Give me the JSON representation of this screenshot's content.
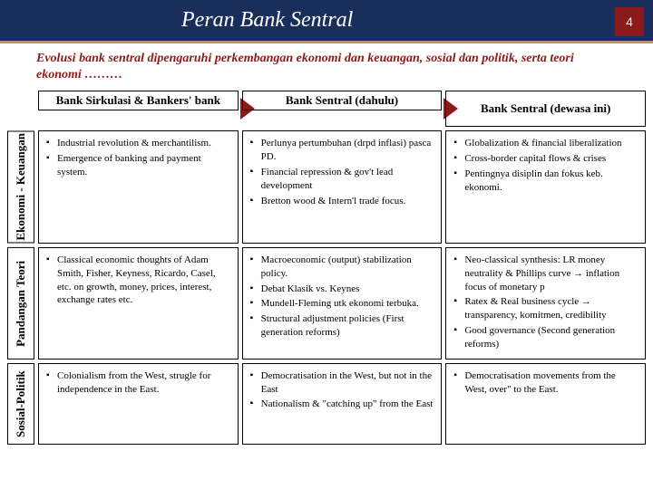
{
  "title": "Peran Bank Sentral",
  "page_number": "4",
  "subtitle": "Evolusi bank sentral dipengaruhi perkembangan ekonomi dan keuangan, sosial dan politik, serta teori ekonomi ………",
  "columns": [
    {
      "label": "Bank Sirkulasi & Bankers' bank"
    },
    {
      "label": "Bank Sentral (dahulu)"
    },
    {
      "label": "Bank Sentral (dewasa ini)"
    }
  ],
  "rows": [
    {
      "label": "Ekonomi - Keuangan"
    },
    {
      "label": "Pandangan Teori"
    },
    {
      "label": "Sosial-Politik"
    }
  ],
  "cells": {
    "r0c0": [
      "Industrial revolution & merchantilism.",
      "Emergence of banking and payment system."
    ],
    "r0c1": [
      "Perlunya pertumbuhan (drpd inflasi) pasca PD.",
      "Financial repression & gov't lead development",
      "Bretton wood & Intern'l trade focus."
    ],
    "r0c2": [
      "Globalization & financial liberalization",
      "Cross-border capital flows & crises",
      "Pentingnya disiplin dan fokus keb. ekonomi."
    ],
    "r1c0": [
      "Classical economic thoughts of Adam Smith, Fisher, Keyness, Ricardo, Casel, etc.  on growth, money, prices, interest, exchange rates etc."
    ],
    "r1c1": [
      "Macroeconomic (output) stabilization policy.",
      "Debat Klasik vs. Keynes",
      "Mundell-Fleming utk ekonomi terbuka.",
      "Structural adjustment policies (First generation reforms)"
    ],
    "r1c2": [
      "Neo-classical synthesis: LR money neutrality & Phillips curve → inflation focus of monetary p",
      "Ratex & Real business cycle → transparency, komitmen, credibility",
      "Good governance (Second generation reforms)"
    ],
    "r2c0": [
      "Colonialism from the West, strugle for independence in the East."
    ],
    "r2c1": [
      "Democratisation in the West, but not in the East",
      "Nationalism & \"catching up\" from the East"
    ],
    "r2c2": [
      "Democratisation movements from the West, over\" to the East."
    ]
  },
  "colors": {
    "header_bg": "#1a2e5c",
    "header_border": "#b8945a",
    "pgnum_bg": "#8b1a1a",
    "subtitle_color": "#8b1a1a",
    "arrow_fill": "#8b1a1a",
    "cell_border": "#000000"
  }
}
